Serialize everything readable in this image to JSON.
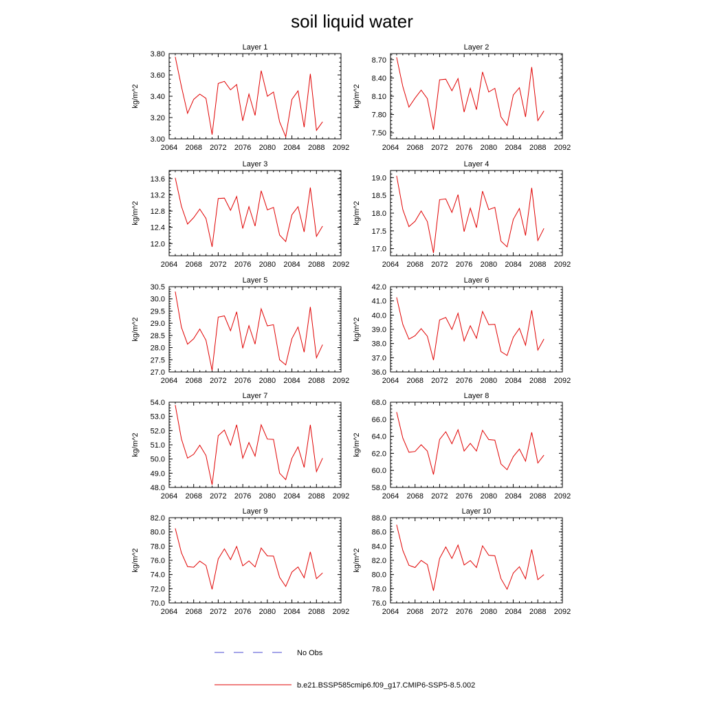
{
  "figure": {
    "title": "soil liquid water"
  },
  "legend": {
    "entries": [
      {
        "label": "No Obs",
        "color": "#4a4ad0",
        "style": "dashed"
      },
      {
        "label": "b.e21.BSSP585cmip6.f09_g17.CMIP6-SSP5-8.5.002",
        "color": "#e00000",
        "style": "solid"
      }
    ]
  },
  "chart_data": [
    {
      "type": "line",
      "title": "Layer 1",
      "ylabel": "kg/m^2",
      "xlim": [
        2064,
        2092
      ],
      "ylim": [
        3.0,
        3.8
      ],
      "xticks": [
        "2064",
        "2068",
        "2072",
        "2076",
        "2080",
        "2084",
        "2088",
        "2092"
      ],
      "yticks": [
        "3.00",
        "3.20",
        "3.40",
        "3.60",
        "3.80"
      ],
      "x": [
        2065,
        2066,
        2067,
        2068,
        2069,
        2070,
        2071,
        2072,
        2073,
        2074,
        2075,
        2076,
        2077,
        2078,
        2079,
        2080,
        2081,
        2082,
        2083,
        2084,
        2085,
        2086,
        2087,
        2088,
        2089
      ],
      "series": [
        {
          "values": [
            3.77,
            3.49,
            3.24,
            3.37,
            3.42,
            3.38,
            3.04,
            3.52,
            3.54,
            3.46,
            3.51,
            3.17,
            3.42,
            3.22,
            3.64,
            3.4,
            3.44,
            3.16,
            3.02,
            3.37,
            3.45,
            3.11,
            3.61,
            3.08,
            3.16
          ],
          "color": "#e00000"
        }
      ]
    },
    {
      "type": "line",
      "title": "Layer 2",
      "ylabel": "kg/m^2",
      "xlim": [
        2064,
        2092
      ],
      "ylim": [
        7.4,
        8.8
      ],
      "xticks": [
        "2064",
        "2068",
        "2072",
        "2076",
        "2080",
        "2084",
        "2088",
        "2092"
      ],
      "yticks": [
        "7.50",
        "7.80",
        "8.10",
        "8.40",
        "8.70"
      ],
      "x": [
        2065,
        2066,
        2067,
        2068,
        2069,
        2070,
        2071,
        2072,
        2073,
        2074,
        2075,
        2076,
        2077,
        2078,
        2079,
        2080,
        2081,
        2082,
        2083,
        2084,
        2085,
        2086,
        2087,
        2088,
        2089
      ],
      "series": [
        {
          "values": [
            8.74,
            8.26,
            7.92,
            8.07,
            8.2,
            8.06,
            7.55,
            8.37,
            8.38,
            8.19,
            8.39,
            7.84,
            8.23,
            7.88,
            8.5,
            8.17,
            8.23,
            7.76,
            7.62,
            8.12,
            8.24,
            7.76,
            8.58,
            7.7,
            7.86
          ],
          "color": "#e00000"
        }
      ]
    },
    {
      "type": "line",
      "title": "Layer 3",
      "ylabel": "kg/m^2",
      "xlim": [
        2064,
        2092
      ],
      "ylim": [
        11.7,
        13.8
      ],
      "xticks": [
        "2064",
        "2068",
        "2072",
        "2076",
        "2080",
        "2084",
        "2088",
        "2092"
      ],
      "yticks": [
        "12.0",
        "12.4",
        "12.8",
        "13.2",
        "13.6"
      ],
      "x": [
        2065,
        2066,
        2067,
        2068,
        2069,
        2070,
        2071,
        2072,
        2073,
        2074,
        2075,
        2076,
        2077,
        2078,
        2079,
        2080,
        2081,
        2082,
        2083,
        2084,
        2085,
        2086,
        2087,
        2088,
        2089
      ],
      "series": [
        {
          "values": [
            13.62,
            12.92,
            12.48,
            12.64,
            12.85,
            12.62,
            11.92,
            13.11,
            13.12,
            12.82,
            13.16,
            12.37,
            12.91,
            12.43,
            13.3,
            12.83,
            12.89,
            12.21,
            12.05,
            12.71,
            12.91,
            12.29,
            13.38,
            12.18,
            12.43
          ],
          "color": "#e00000"
        }
      ]
    },
    {
      "type": "line",
      "title": "Layer 4",
      "ylabel": "kg/m^2",
      "xlim": [
        2064,
        2092
      ],
      "ylim": [
        16.8,
        19.2
      ],
      "xticks": [
        "2064",
        "2068",
        "2072",
        "2076",
        "2080",
        "2084",
        "2088",
        "2092"
      ],
      "yticks": [
        "17.0",
        "17.5",
        "18.0",
        "18.5",
        "19.0"
      ],
      "x": [
        2065,
        2066,
        2067,
        2068,
        2069,
        2070,
        2071,
        2072,
        2073,
        2074,
        2075,
        2076,
        2077,
        2078,
        2079,
        2080,
        2081,
        2082,
        2083,
        2084,
        2085,
        2086,
        2087,
        2088,
        2089
      ],
      "series": [
        {
          "values": [
            19.05,
            18.1,
            17.62,
            17.77,
            18.06,
            17.76,
            16.88,
            18.38,
            18.4,
            18.02,
            18.52,
            17.48,
            18.14,
            17.59,
            18.62,
            18.1,
            18.16,
            17.21,
            17.05,
            17.82,
            18.13,
            17.37,
            18.71,
            17.23,
            17.57
          ],
          "color": "#e00000"
        }
      ]
    },
    {
      "type": "line",
      "title": "Layer 5",
      "ylabel": "kg/m^2",
      "xlim": [
        2064,
        2092
      ],
      "ylim": [
        27.0,
        30.5
      ],
      "xticks": [
        "2064",
        "2068",
        "2072",
        "2076",
        "2080",
        "2084",
        "2088",
        "2092"
      ],
      "yticks": [
        "27.0",
        "27.5",
        "28.0",
        "28.5",
        "29.0",
        "29.5",
        "30.0",
        "30.5"
      ],
      "x": [
        2065,
        2066,
        2067,
        2068,
        2069,
        2070,
        2071,
        2072,
        2073,
        2074,
        2075,
        2076,
        2077,
        2078,
        2079,
        2080,
        2081,
        2082,
        2083,
        2084,
        2085,
        2086,
        2087,
        2088,
        2089
      ],
      "series": [
        {
          "values": [
            30.3,
            28.83,
            28.14,
            28.36,
            28.76,
            28.3,
            27.06,
            29.25,
            29.3,
            28.69,
            29.47,
            27.97,
            28.9,
            28.14,
            29.59,
            28.89,
            28.94,
            27.5,
            27.29,
            28.37,
            28.84,
            27.81,
            29.67,
            27.58,
            28.12
          ],
          "color": "#e00000"
        }
      ]
    },
    {
      "type": "line",
      "title": "Layer 6",
      "ylabel": "kg/m^2",
      "xlim": [
        2064,
        2092
      ],
      "ylim": [
        36.0,
        42.0
      ],
      "xticks": [
        "2064",
        "2068",
        "2072",
        "2076",
        "2080",
        "2084",
        "2088",
        "2092"
      ],
      "yticks": [
        "36.0",
        "37.0",
        "38.0",
        "39.0",
        "40.0",
        "41.0",
        "42.0"
      ],
      "x": [
        2065,
        2066,
        2067,
        2068,
        2069,
        2070,
        2071,
        2072,
        2073,
        2074,
        2075,
        2076,
        2077,
        2078,
        2079,
        2080,
        2081,
        2082,
        2083,
        2084,
        2085,
        2086,
        2087,
        2088,
        2089
      ],
      "series": [
        {
          "values": [
            41.25,
            39.35,
            38.31,
            38.55,
            39.05,
            38.51,
            36.83,
            39.66,
            39.83,
            38.99,
            40.13,
            38.18,
            39.25,
            38.37,
            40.26,
            39.33,
            39.35,
            37.43,
            37.16,
            38.44,
            39.07,
            37.88,
            40.34,
            37.54,
            38.32
          ],
          "color": "#e00000"
        }
      ]
    },
    {
      "type": "line",
      "title": "Layer 7",
      "ylabel": "kg/m^2",
      "xlim": [
        2064,
        2092
      ],
      "ylim": [
        48.0,
        54.0
      ],
      "xticks": [
        "2064",
        "2068",
        "2072",
        "2076",
        "2080",
        "2084",
        "2088",
        "2092"
      ],
      "yticks": [
        "48.0",
        "49.0",
        "50.0",
        "51.0",
        "52.0",
        "53.0",
        "54.0"
      ],
      "x": [
        2065,
        2066,
        2067,
        2068,
        2069,
        2070,
        2071,
        2072,
        2073,
        2074,
        2075,
        2076,
        2077,
        2078,
        2079,
        2080,
        2081,
        2082,
        2083,
        2084,
        2085,
        2086,
        2087,
        2088,
        2089
      ],
      "series": [
        {
          "values": [
            53.8,
            51.41,
            50.06,
            50.33,
            50.97,
            50.25,
            48.19,
            51.64,
            52.04,
            50.97,
            52.41,
            50.06,
            51.16,
            50.2,
            52.41,
            51.4,
            51.38,
            49.0,
            48.55,
            50.06,
            50.85,
            49.41,
            52.41,
            49.12,
            50.06
          ],
          "color": "#e00000"
        }
      ]
    },
    {
      "type": "line",
      "title": "Layer 8",
      "ylabel": "kg/m^2",
      "xlim": [
        2064,
        2092
      ],
      "ylim": [
        58.0,
        68.0
      ],
      "xticks": [
        "2064",
        "2068",
        "2072",
        "2076",
        "2080",
        "2084",
        "2088",
        "2092"
      ],
      "yticks": [
        "58.0",
        "60.0",
        "62.0",
        "64.0",
        "66.0",
        "68.0"
      ],
      "x": [
        2065,
        2066,
        2067,
        2068,
        2069,
        2070,
        2071,
        2072,
        2073,
        2074,
        2075,
        2076,
        2077,
        2078,
        2079,
        2080,
        2081,
        2082,
        2083,
        2084,
        2085,
        2086,
        2087,
        2088,
        2089
      ],
      "series": [
        {
          "values": [
            66.84,
            63.8,
            62.13,
            62.22,
            63.01,
            62.27,
            59.52,
            63.62,
            64.53,
            63.12,
            64.77,
            62.27,
            63.17,
            62.27,
            64.7,
            63.61,
            63.55,
            60.75,
            60.08,
            61.61,
            62.5,
            61.08,
            64.47,
            60.86,
            61.8
          ],
          "color": "#e00000"
        }
      ]
    },
    {
      "type": "line",
      "title": "Layer 9",
      "ylabel": "kg/m^2",
      "xlim": [
        2064,
        2092
      ],
      "ylim": [
        70.0,
        82.0
      ],
      "xticks": [
        "2064",
        "2068",
        "2072",
        "2076",
        "2080",
        "2084",
        "2088",
        "2092"
      ],
      "yticks": [
        "70.0",
        "72.0",
        "74.0",
        "76.0",
        "78.0",
        "80.0",
        "82.0"
      ],
      "x": [
        2065,
        2066,
        2067,
        2068,
        2069,
        2070,
        2071,
        2072,
        2073,
        2074,
        2075,
        2076,
        2077,
        2078,
        2079,
        2080,
        2081,
        2082,
        2083,
        2084,
        2085,
        2086,
        2087,
        2088,
        2089
      ],
      "series": [
        {
          "values": [
            80.5,
            77.05,
            75.12,
            75.02,
            75.88,
            75.28,
            71.92,
            76.18,
            77.62,
            76.1,
            77.95,
            75.23,
            75.91,
            75.07,
            77.73,
            76.62,
            76.59,
            73.6,
            72.32,
            74.35,
            75.07,
            73.54,
            77.19,
            73.42,
            74.22
          ],
          "color": "#e00000"
        }
      ]
    },
    {
      "type": "line",
      "title": "Layer 10",
      "ylabel": "kg/m^2",
      "xlim": [
        2064,
        2092
      ],
      "ylim": [
        76.0,
        88.0
      ],
      "xticks": [
        "2064",
        "2068",
        "2072",
        "2076",
        "2080",
        "2084",
        "2088",
        "2092"
      ],
      "yticks": [
        "76.0",
        "78.0",
        "80.0",
        "82.0",
        "84.0",
        "86.0",
        "88.0"
      ],
      "x": [
        2065,
        2066,
        2067,
        2068,
        2069,
        2070,
        2071,
        2072,
        2073,
        2074,
        2075,
        2076,
        2077,
        2078,
        2079,
        2080,
        2081,
        2082,
        2083,
        2084,
        2085,
        2086,
        2087,
        2088,
        2089
      ],
      "series": [
        {
          "values": [
            87.0,
            83.4,
            81.3,
            80.98,
            81.98,
            81.4,
            77.72,
            82.26,
            83.88,
            82.26,
            84.15,
            81.34,
            81.96,
            80.98,
            84.04,
            82.72,
            82.64,
            79.42,
            77.94,
            80.21,
            81.1,
            79.4,
            83.52,
            79.28,
            80.0
          ],
          "color": "#e00000"
        }
      ]
    }
  ]
}
